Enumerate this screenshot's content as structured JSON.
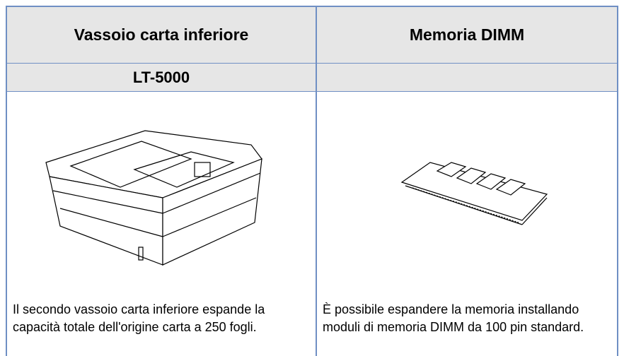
{
  "table": {
    "header": [
      "Vassoio carta inferiore",
      "Memoria DIMM"
    ],
    "model": "LT-5000",
    "descriptions": [
      "Il secondo vassoio carta inferiore espande la capacità totale dell'origine carta a 250 fogli.",
      "È possibile espandere la memoria installando moduli di memoria DIMM da 100 pin standard."
    ]
  }
}
